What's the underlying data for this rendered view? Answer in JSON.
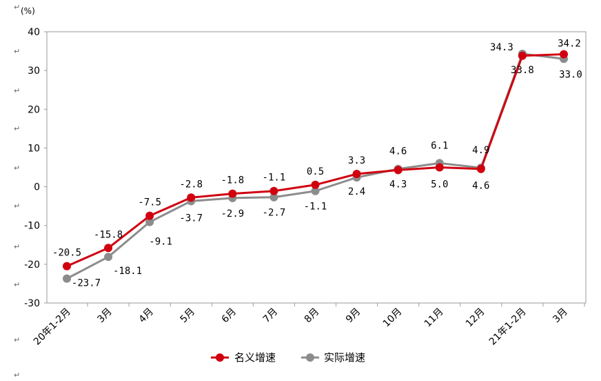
{
  "chart_data": {
    "type": "line",
    "unit_label": "(%)",
    "categories": [
      "20年1-2月",
      "3月",
      "4月",
      "5月",
      "6月",
      "7月",
      "8月",
      "9月",
      "10月",
      "11月",
      "12月",
      "21年1-2月",
      "3月"
    ],
    "ylim": [
      -30,
      40
    ],
    "yticks": [
      40,
      30,
      20,
      10,
      0,
      -10,
      -20,
      -30
    ],
    "grid": false,
    "legend_position": "bottom",
    "series": [
      {
        "name": "名义增速",
        "color": "#d0000f",
        "values": [
          -20.5,
          -15.8,
          -7.5,
          -2.8,
          -1.8,
          -1.1,
          0.5,
          3.3,
          4.3,
          5.0,
          4.6,
          33.8,
          34.2
        ],
        "labels": [
          "-20.5",
          "-15.8",
          "-7.5",
          "-2.8",
          "-1.8",
          "-1.1",
          "0.5",
          "3.3",
          "4.3",
          "5.0",
          "4.6",
          "33.8",
          "34.2"
        ]
      },
      {
        "name": "实际增速",
        "color": "#8c8c8c",
        "values": [
          -23.7,
          -18.1,
          -9.1,
          -3.7,
          -2.9,
          -2.7,
          -1.1,
          2.4,
          4.6,
          6.1,
          4.9,
          34.3,
          33.0
        ],
        "labels": [
          "-23.7",
          "-18.1",
          "-9.1",
          "-3.7",
          "-2.9",
          "-2.7",
          "-1.1",
          "2.4",
          "4.6",
          "6.1",
          "4.9",
          "34.3",
          "33.0"
        ]
      }
    ]
  },
  "stray_mark": "↵"
}
